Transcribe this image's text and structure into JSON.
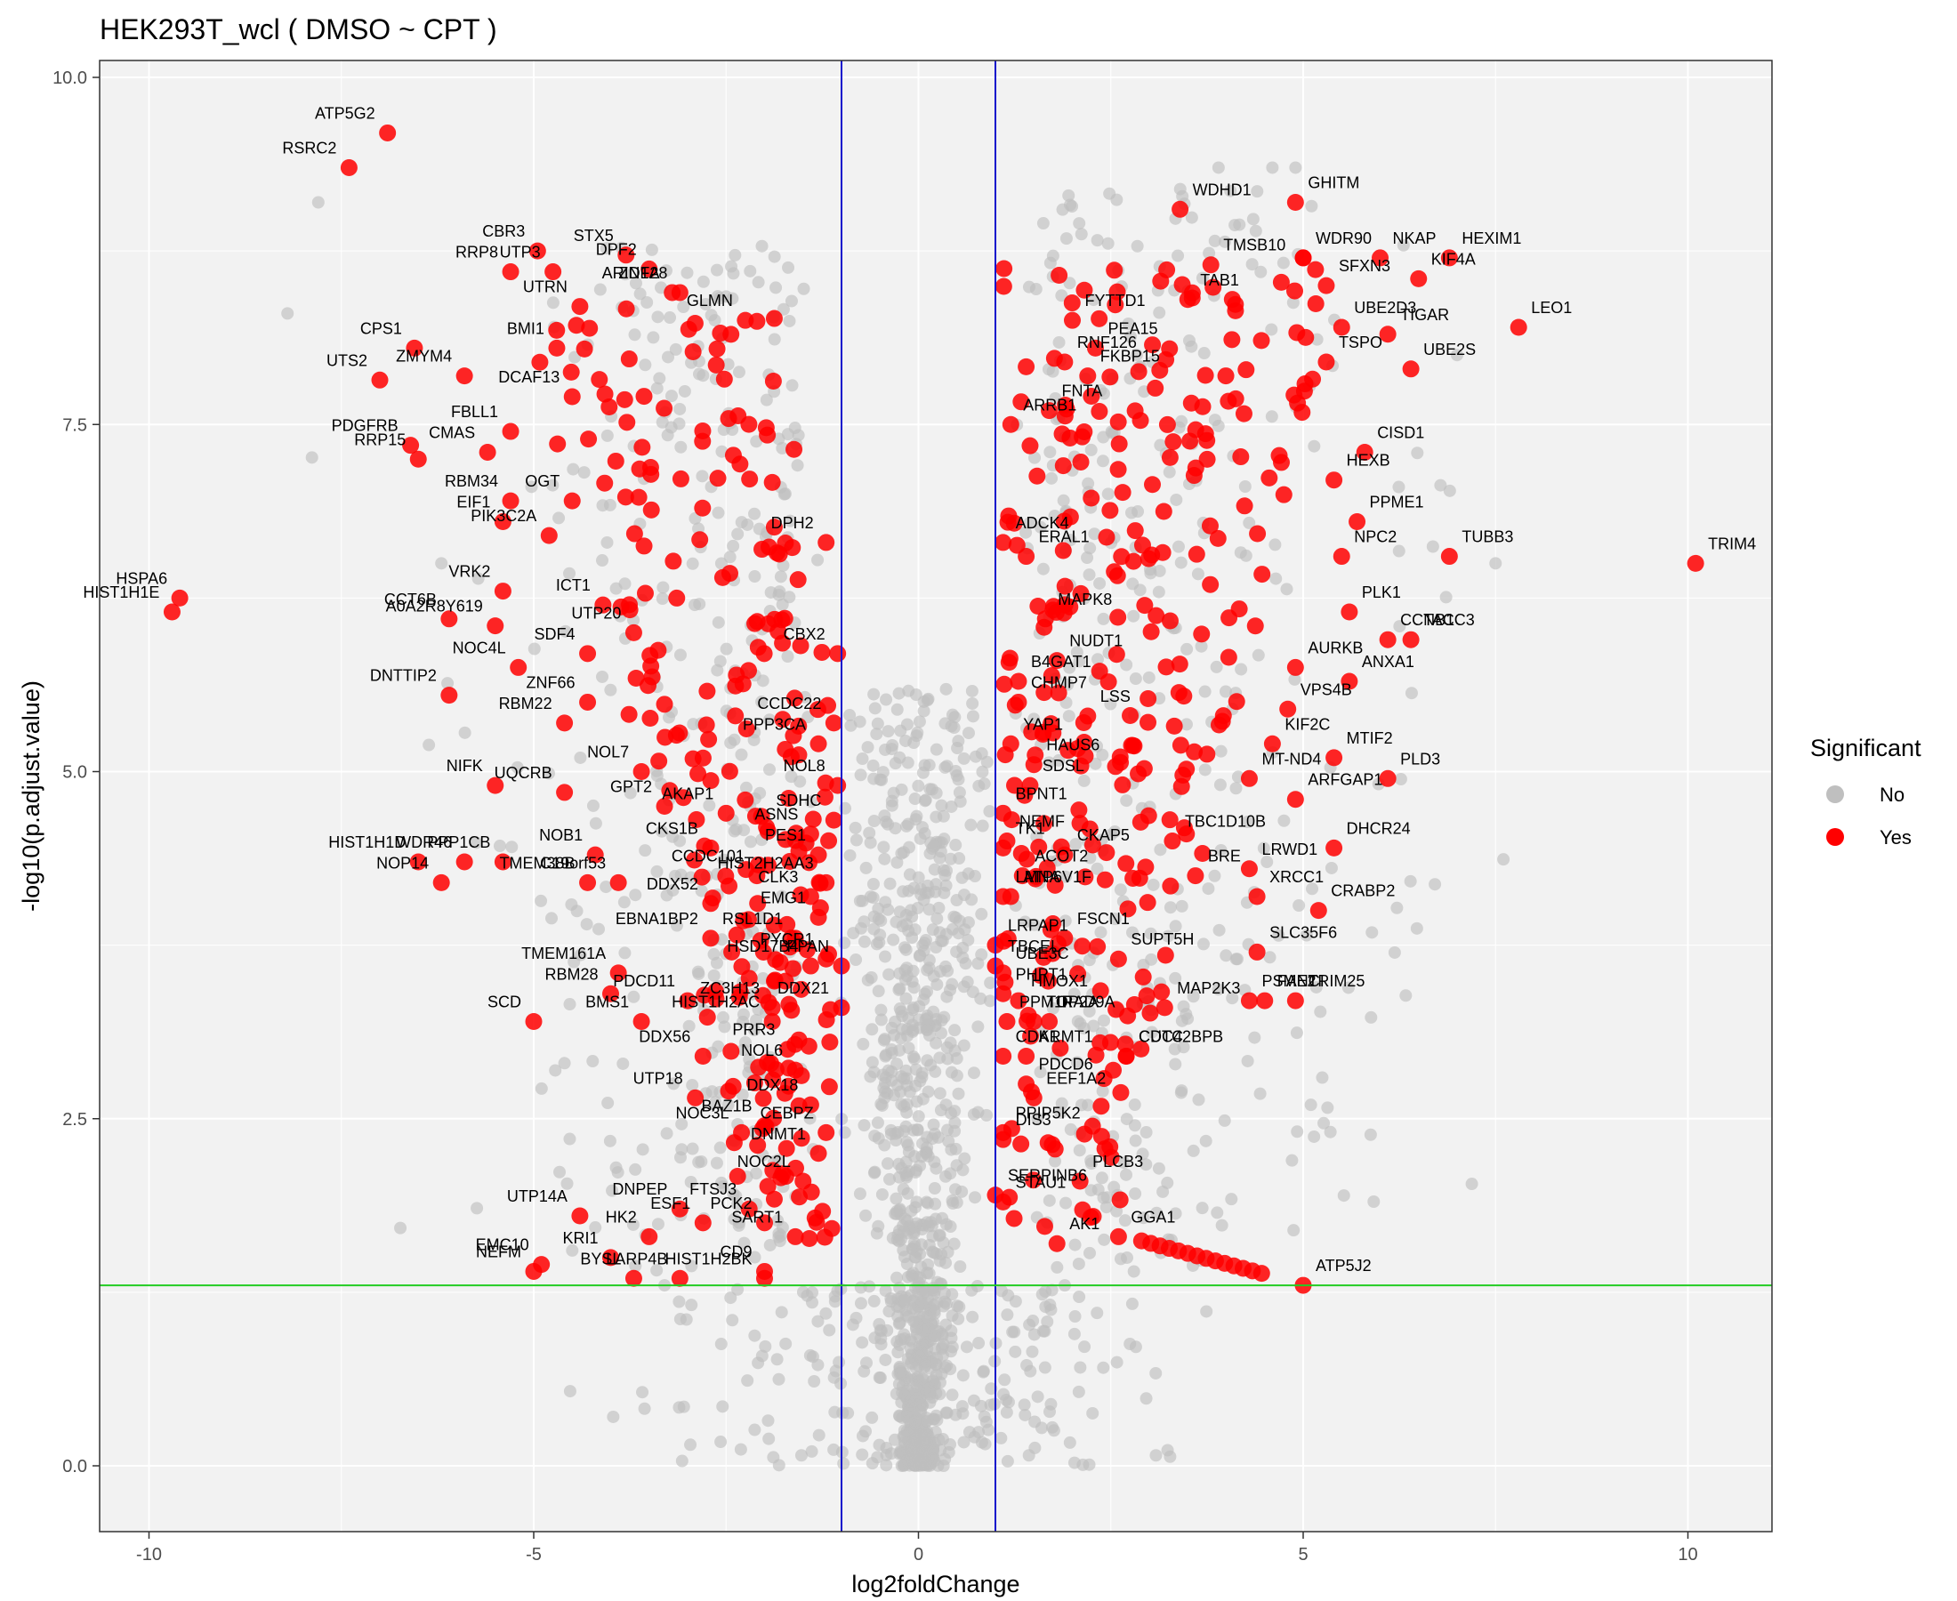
{
  "chart_data": {
    "type": "scatter",
    "title": "HEK293T_wcl ( DMSO ~ CPT )",
    "xlabel": "log2foldChange",
    "ylabel": "-log10(p.adjust.value)",
    "xlim": [
      -11,
      11
    ],
    "ylim": [
      -0.5,
      10.15
    ],
    "xticks": [
      -10,
      -5,
      0,
      5,
      10
    ],
    "yticks": [
      0.0,
      2.5,
      5.0,
      7.5,
      10.0
    ],
    "xtick_labels": [
      "-10",
      "-5",
      "0",
      "5",
      "10"
    ],
    "ytick_labels": [
      "0.0",
      "2.5",
      "5.0",
      "7.5",
      "10.0"
    ],
    "grid": true,
    "vlines": [
      -1,
      1
    ],
    "hline": 1.3,
    "legend": {
      "title": "Significant",
      "position": "right",
      "entries": [
        {
          "name": "No",
          "color": "#bfbfbf"
        },
        {
          "name": "Yes",
          "color": "#ff0000"
        }
      ]
    },
    "colors": {
      "significant": "#ff0000",
      "non_significant": "#bfbfbf",
      "threshold_v": "#1010cc",
      "threshold_h": "#22cc22",
      "panel": "#f2f2f2"
    },
    "labeled_points": [
      {
        "label": "ATP5G2",
        "x": -6.9,
        "y": 9.6
      },
      {
        "label": "RSRC2",
        "x": -7.4,
        "y": 9.35
      },
      {
        "label": "CBR3",
        "x": -4.95,
        "y": 8.75
      },
      {
        "label": "STX5",
        "x": -3.8,
        "y": 8.72
      },
      {
        "label": "UTP3",
        "x": -4.75,
        "y": 8.6
      },
      {
        "label": "DPF2",
        "x": -3.5,
        "y": 8.62
      },
      {
        "label": "RRP8",
        "x": -5.3,
        "y": 8.6
      },
      {
        "label": "ARID1A",
        "x": -3.2,
        "y": 8.45
      },
      {
        "label": "ZNF28",
        "x": -3.1,
        "y": 8.45
      },
      {
        "label": "UTRN",
        "x": -4.4,
        "y": 8.35
      },
      {
        "label": "GLMN",
        "x": -2.25,
        "y": 8.25
      },
      {
        "label": "CPS1",
        "x": -6.55,
        "y": 8.05
      },
      {
        "label": "ZMYM4",
        "x": -5.9,
        "y": 7.85
      },
      {
        "label": "BMI1",
        "x": -4.7,
        "y": 8.05
      },
      {
        "label": "UTS2",
        "x": -7.0,
        "y": 7.82
      },
      {
        "label": "DCAF13",
        "x": -4.5,
        "y": 7.7
      },
      {
        "label": "FBLL1",
        "x": -5.3,
        "y": 7.45
      },
      {
        "label": "PDGFRB",
        "x": -6.6,
        "y": 7.35
      },
      {
        "label": "CMAS",
        "x": -5.6,
        "y": 7.3
      },
      {
        "label": "RRP15",
        "x": -6.5,
        "y": 7.25
      },
      {
        "label": "RBM34",
        "x": -5.3,
        "y": 6.95
      },
      {
        "label": "OGT",
        "x": -4.5,
        "y": 6.95
      },
      {
        "label": "EIF1",
        "x": -5.4,
        "y": 6.8
      },
      {
        "label": "PIK3C2A",
        "x": -4.8,
        "y": 6.7
      },
      {
        "label": "DPH2",
        "x": -1.2,
        "y": 6.65
      },
      {
        "label": "HSPA6",
        "x": -9.6,
        "y": 6.25
      },
      {
        "label": "HIST1H1E",
        "x": -9.7,
        "y": 6.15
      },
      {
        "label": "VRK2",
        "x": -5.4,
        "y": 6.3
      },
      {
        "label": "ICT1",
        "x": -4.1,
        "y": 6.2
      },
      {
        "label": "CCT6B",
        "x": -6.1,
        "y": 6.1
      },
      {
        "label": "UTP20",
        "x": -3.7,
        "y": 6.0
      },
      {
        "label": "A0A2R8Y619",
        "x": -5.5,
        "y": 6.05
      },
      {
        "label": "SDF4",
        "x": -4.3,
        "y": 5.85
      },
      {
        "label": "CBX2",
        "x": -1.05,
        "y": 5.85
      },
      {
        "label": "NOC4L",
        "x": -5.2,
        "y": 5.75
      },
      {
        "label": "DNTTIP2",
        "x": -6.1,
        "y": 5.55
      },
      {
        "label": "ZNF66",
        "x": -4.3,
        "y": 5.5
      },
      {
        "label": "CCDC22",
        "x": -1.1,
        "y": 5.35
      },
      {
        "label": "RBM22",
        "x": -4.6,
        "y": 5.35
      },
      {
        "label": "PPP3CA",
        "x": -1.3,
        "y": 5.2
      },
      {
        "label": "NOL7",
        "x": -3.6,
        "y": 5.0
      },
      {
        "label": "NIFK",
        "x": -5.5,
        "y": 4.9
      },
      {
        "label": "NOL8",
        "x": -1.05,
        "y": 4.9
      },
      {
        "label": "UQCRB",
        "x": -4.6,
        "y": 4.85
      },
      {
        "label": "GPT2",
        "x": -3.3,
        "y": 4.75
      },
      {
        "label": "AKAP1",
        "x": -2.5,
        "y": 4.7
      },
      {
        "label": "SDHC",
        "x": -1.1,
        "y": 4.65
      },
      {
        "label": "HIST1H1D",
        "x": -6.5,
        "y": 4.35
      },
      {
        "label": "WDR46",
        "x": -5.9,
        "y": 4.35
      },
      {
        "label": "NOB1",
        "x": -4.2,
        "y": 4.4
      },
      {
        "label": "CKS1B",
        "x": -2.7,
        "y": 4.45
      },
      {
        "label": "ASNS",
        "x": -1.4,
        "y": 4.55
      },
      {
        "label": "PES1",
        "x": -1.3,
        "y": 4.4
      },
      {
        "label": "NOP14",
        "x": -6.2,
        "y": 4.2
      },
      {
        "label": "PPP1CB",
        "x": -5.4,
        "y": 4.35
      },
      {
        "label": "TMEM38B",
        "x": -4.3,
        "y": 4.2
      },
      {
        "label": "CCDC101",
        "x": -2.1,
        "y": 4.25
      },
      {
        "label": "CLK3",
        "x": -1.4,
        "y": 4.1
      },
      {
        "label": "HIST2H2AA3",
        "x": -1.2,
        "y": 4.2
      },
      {
        "label": "C19orf53",
        "x": -3.9,
        "y": 4.2
      },
      {
        "label": "DDX52",
        "x": -2.7,
        "y": 4.05
      },
      {
        "label": "EMG1",
        "x": -1.3,
        "y": 3.95
      },
      {
        "label": "EBNA1BP2",
        "x": -2.7,
        "y": 3.8
      },
      {
        "label": "RSL1D1",
        "x": -1.6,
        "y": 3.8
      },
      {
        "label": "PYCR1",
        "x": -1.2,
        "y": 3.65
      },
      {
        "label": "TMEM161A",
        "x": -3.9,
        "y": 3.55
      },
      {
        "label": "PPAN",
        "x": -1.0,
        "y": 3.6
      },
      {
        "label": "HSD17B4",
        "x": -1.4,
        "y": 3.6
      },
      {
        "label": "RBM28",
        "x": -4.0,
        "y": 3.4
      },
      {
        "label": "PDCD11",
        "x": -3.0,
        "y": 3.35
      },
      {
        "label": "ZC3H13",
        "x": -1.9,
        "y": 3.3
      },
      {
        "label": "DDX21",
        "x": -1.0,
        "y": 3.3
      },
      {
        "label": "BMS1",
        "x": -3.6,
        "y": 3.2
      },
      {
        "label": "HIST1H2AC",
        "x": -1.9,
        "y": 3.2
      },
      {
        "label": "SCD",
        "x": -5.0,
        "y": 3.2
      },
      {
        "label": "PRR3",
        "x": -1.7,
        "y": 3.0
      },
      {
        "label": "DDX56",
        "x": -2.8,
        "y": 2.95
      },
      {
        "label": "NOL6",
        "x": -1.6,
        "y": 2.85
      },
      {
        "label": "UTP18",
        "x": -2.9,
        "y": 2.65
      },
      {
        "label": "DDX18",
        "x": -1.4,
        "y": 2.6
      },
      {
        "label": "BAZ1B",
        "x": -2.0,
        "y": 2.45
      },
      {
        "label": "NOC3L",
        "x": -2.3,
        "y": 2.4
      },
      {
        "label": "CEBPZ",
        "x": -1.2,
        "y": 2.4
      },
      {
        "label": "DNMT1",
        "x": -1.3,
        "y": 2.25
      },
      {
        "label": "NOC2L",
        "x": -1.5,
        "y": 2.05
      },
      {
        "label": "UTP14A",
        "x": -4.4,
        "y": 1.8
      },
      {
        "label": "DNPEP",
        "x": -3.1,
        "y": 1.85
      },
      {
        "label": "FTSJ3",
        "x": -2.2,
        "y": 1.85
      },
      {
        "label": "PCK2",
        "x": -2.0,
        "y": 1.75
      },
      {
        "label": "EMC10",
        "x": -4.9,
        "y": 1.45
      },
      {
        "label": "HK2",
        "x": -3.5,
        "y": 1.65
      },
      {
        "label": "ESF1",
        "x": -2.8,
        "y": 1.75
      },
      {
        "label": "SART1",
        "x": -1.6,
        "y": 1.65
      },
      {
        "label": "CD9",
        "x": -2.0,
        "y": 1.4
      },
      {
        "label": "KRI1",
        "x": -4.0,
        "y": 1.5
      },
      {
        "label": "NEFM",
        "x": -5.0,
        "y": 1.4
      },
      {
        "label": "BYSL",
        "x": -3.7,
        "y": 1.35
      },
      {
        "label": "LARP4B",
        "x": -3.1,
        "y": 1.35
      },
      {
        "label": "HIST1H2BK",
        "x": -2.0,
        "y": 1.35
      },
      {
        "label": "WDHD1",
        "x": 3.4,
        "y": 9.05
      },
      {
        "label": "GHITM",
        "x": 4.9,
        "y": 9.1
      },
      {
        "label": "TMSB10",
        "x": 3.8,
        "y": 8.65
      },
      {
        "label": "WDR90",
        "x": 5.0,
        "y": 8.7
      },
      {
        "label": "NKAP",
        "x": 6.0,
        "y": 8.7
      },
      {
        "label": "HEXIM1",
        "x": 6.9,
        "y": 8.7
      },
      {
        "label": "TAB1",
        "x": 3.5,
        "y": 8.4
      },
      {
        "label": "SFXN3",
        "x": 5.3,
        "y": 8.5
      },
      {
        "label": "KIF4A",
        "x": 6.5,
        "y": 8.55
      },
      {
        "label": "FYTTD1",
        "x": 2.0,
        "y": 8.25
      },
      {
        "label": "PEA15",
        "x": 2.3,
        "y": 8.05
      },
      {
        "label": "UBE2D3",
        "x": 5.5,
        "y": 8.2
      },
      {
        "label": "TIGAR",
        "x": 6.1,
        "y": 8.15
      },
      {
        "label": "LEO1",
        "x": 7.8,
        "y": 8.2
      },
      {
        "label": "RNF126",
        "x": 1.9,
        "y": 7.95
      },
      {
        "label": "FKBP15",
        "x": 2.2,
        "y": 7.85
      },
      {
        "label": "TSPO",
        "x": 5.3,
        "y": 7.95
      },
      {
        "label": "UBE2S",
        "x": 6.4,
        "y": 7.9
      },
      {
        "label": "FNTA",
        "x": 1.7,
        "y": 7.6
      },
      {
        "label": "CISD1",
        "x": 5.8,
        "y": 7.3
      },
      {
        "label": "ARRB1",
        "x": 1.2,
        "y": 7.5
      },
      {
        "label": "HEXB",
        "x": 5.4,
        "y": 7.1
      },
      {
        "label": "PPME1",
        "x": 5.7,
        "y": 6.8
      },
      {
        "label": "ADCK4",
        "x": 1.1,
        "y": 6.65
      },
      {
        "label": "ERAL1",
        "x": 1.4,
        "y": 6.55
      },
      {
        "label": "NPC2",
        "x": 5.5,
        "y": 6.55
      },
      {
        "label": "TUBB3",
        "x": 6.9,
        "y": 6.55
      },
      {
        "label": "TRIM4",
        "x": 10.1,
        "y": 6.5
      },
      {
        "label": "MAPK8",
        "x": 1.65,
        "y": 6.1
      },
      {
        "label": "PLK1",
        "x": 5.6,
        "y": 6.15
      },
      {
        "label": "CCNB1",
        "x": 6.1,
        "y": 5.95
      },
      {
        "label": "NUDT1",
        "x": 1.8,
        "y": 5.8
      },
      {
        "label": "AURKB",
        "x": 4.9,
        "y": 5.75
      },
      {
        "label": "TACC3",
        "x": 6.4,
        "y": 5.95
      },
      {
        "label": "B4GAT1",
        "x": 1.3,
        "y": 5.65
      },
      {
        "label": "CHMP7",
        "x": 1.3,
        "y": 5.5
      },
      {
        "label": "LSS",
        "x": 2.2,
        "y": 5.4
      },
      {
        "label": "ANXA1",
        "x": 5.6,
        "y": 5.65
      },
      {
        "label": "VPS4B",
        "x": 4.8,
        "y": 5.45
      },
      {
        "label": "YAP1",
        "x": 1.2,
        "y": 5.2
      },
      {
        "label": "KIF2C",
        "x": 4.6,
        "y": 5.2
      },
      {
        "label": "HAUS6",
        "x": 1.5,
        "y": 5.05
      },
      {
        "label": "MTIF2",
        "x": 5.4,
        "y": 5.1
      },
      {
        "label": "SDSL",
        "x": 1.45,
        "y": 4.9
      },
      {
        "label": "MT-ND4",
        "x": 4.3,
        "y": 4.95
      },
      {
        "label": "PLD3",
        "x": 6.1,
        "y": 4.95
      },
      {
        "label": "BPNT1",
        "x": 1.1,
        "y": 4.7
      },
      {
        "label": "ARFGAP1",
        "x": 4.9,
        "y": 4.8
      },
      {
        "label": "TK1",
        "x": 1.1,
        "y": 4.45
      },
      {
        "label": "NEMF",
        "x": 1.15,
        "y": 4.5
      },
      {
        "label": "TBC1D10B",
        "x": 3.3,
        "y": 4.5
      },
      {
        "label": "CKAP5",
        "x": 1.9,
        "y": 4.4
      },
      {
        "label": "DHCR24",
        "x": 5.4,
        "y": 4.45
      },
      {
        "label": "ACOT2",
        "x": 1.35,
        "y": 4.25
      },
      {
        "label": "LRWD1",
        "x": 4.3,
        "y": 4.3
      },
      {
        "label": "LMNA",
        "x": 1.1,
        "y": 4.1
      },
      {
        "label": "BRE",
        "x": 3.6,
        "y": 4.25
      },
      {
        "label": "ATP6V1F",
        "x": 1.2,
        "y": 4.1
      },
      {
        "label": "XRCC1",
        "x": 4.4,
        "y": 4.1
      },
      {
        "label": "CRABP2",
        "x": 5.2,
        "y": 4.0
      },
      {
        "label": "LRPAP1",
        "x": 1.0,
        "y": 3.75
      },
      {
        "label": "FSCN1",
        "x": 1.9,
        "y": 3.8
      },
      {
        "label": "TBCEL",
        "x": 1.0,
        "y": 3.6
      },
      {
        "label": "UBE3C",
        "x": 1.1,
        "y": 3.55
      },
      {
        "label": "SUPT5H",
        "x": 2.6,
        "y": 3.65
      },
      {
        "label": "SLC35F6",
        "x": 4.4,
        "y": 3.7
      },
      {
        "label": "PHPT1",
        "x": 1.1,
        "y": 3.4
      },
      {
        "label": "HMOX1",
        "x": 1.3,
        "y": 3.35
      },
      {
        "label": "PSME2",
        "x": 4.3,
        "y": 3.35
      },
      {
        "label": "MAP2K3",
        "x": 3.2,
        "y": 3.3
      },
      {
        "label": "TRIM25",
        "x": 4.9,
        "y": 3.35
      },
      {
        "label": "FANCI",
        "x": 4.5,
        "y": 3.35
      },
      {
        "label": "PPM1F",
        "x": 1.15,
        "y": 3.2
      },
      {
        "label": "TOP2A",
        "x": 1.5,
        "y": 3.2
      },
      {
        "label": "CDK1",
        "x": 1.1,
        "y": 2.95
      },
      {
        "label": "ARMT1",
        "x": 1.4,
        "y": 2.95
      },
      {
        "label": "RAD9A",
        "x": 1.7,
        "y": 3.2
      },
      {
        "label": "CUTC",
        "x": 2.7,
        "y": 2.95
      },
      {
        "label": "PDCD6",
        "x": 1.4,
        "y": 2.75
      },
      {
        "label": "EEF1A2",
        "x": 1.5,
        "y": 2.65
      },
      {
        "label": "CDC42BPB",
        "x": 2.7,
        "y": 2.95
      },
      {
        "label": "PPIP5K2",
        "x": 1.1,
        "y": 2.4
      },
      {
        "label": "DIS3",
        "x": 1.1,
        "y": 2.35
      },
      {
        "label": "PLCB3",
        "x": 2.1,
        "y": 2.05
      },
      {
        "label": "SERPINB6",
        "x": 1.0,
        "y": 1.95
      },
      {
        "label": "STAU1",
        "x": 1.1,
        "y": 1.9
      },
      {
        "label": "GGA1",
        "x": 2.6,
        "y": 1.65
      },
      {
        "label": "AK1",
        "x": 1.8,
        "y": 1.6
      },
      {
        "label": "ATP5J2",
        "x": 5.0,
        "y": 1.3
      }
    ]
  }
}
